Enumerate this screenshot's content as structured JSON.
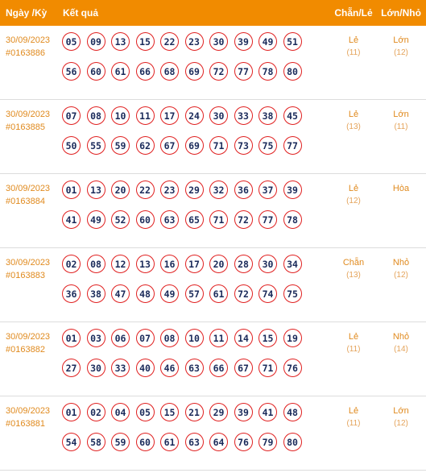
{
  "header": {
    "date_label": "Ngày /Kỳ",
    "result_label": "Kết quả",
    "even_odd_label": "Chẵn/Lẻ",
    "big_small_label": "Lớn/Nhỏ"
  },
  "rows": [
    {
      "date": "30/09/2023",
      "draw": "#0163886",
      "numbers": [
        "05",
        "09",
        "13",
        "15",
        "22",
        "23",
        "30",
        "39",
        "49",
        "51",
        "56",
        "60",
        "61",
        "66",
        "68",
        "69",
        "72",
        "77",
        "78",
        "80"
      ],
      "even_odd": "Lẻ",
      "even_odd_count": "(11)",
      "big_small": "Lớn",
      "big_small_count": "(12)"
    },
    {
      "date": "30/09/2023",
      "draw": "#0163885",
      "numbers": [
        "07",
        "08",
        "10",
        "11",
        "17",
        "24",
        "30",
        "33",
        "38",
        "45",
        "50",
        "55",
        "59",
        "62",
        "67",
        "69",
        "71",
        "73",
        "75",
        "77"
      ],
      "even_odd": "Lẻ",
      "even_odd_count": "(13)",
      "big_small": "Lớn",
      "big_small_count": "(11)"
    },
    {
      "date": "30/09/2023",
      "draw": "#0163884",
      "numbers": [
        "01",
        "13",
        "20",
        "22",
        "23",
        "29",
        "32",
        "36",
        "37",
        "39",
        "41",
        "49",
        "52",
        "60",
        "63",
        "65",
        "71",
        "72",
        "77",
        "78"
      ],
      "even_odd": "Lẻ",
      "even_odd_count": "(12)",
      "big_small": "Hòa",
      "big_small_count": ""
    },
    {
      "date": "30/09/2023",
      "draw": "#0163883",
      "numbers": [
        "02",
        "08",
        "12",
        "13",
        "16",
        "17",
        "20",
        "28",
        "30",
        "34",
        "36",
        "38",
        "47",
        "48",
        "49",
        "57",
        "61",
        "72",
        "74",
        "75"
      ],
      "even_odd": "Chẵn",
      "even_odd_count": "(13)",
      "big_small": "Nhỏ",
      "big_small_count": "(12)"
    },
    {
      "date": "30/09/2023",
      "draw": "#0163882",
      "numbers": [
        "01",
        "03",
        "06",
        "07",
        "08",
        "10",
        "11",
        "14",
        "15",
        "19",
        "27",
        "30",
        "33",
        "40",
        "46",
        "63",
        "66",
        "67",
        "71",
        "76"
      ],
      "even_odd": "Lẻ",
      "even_odd_count": "(11)",
      "big_small": "Nhỏ",
      "big_small_count": "(14)"
    },
    {
      "date": "30/09/2023",
      "draw": "#0163881",
      "numbers": [
        "01",
        "02",
        "04",
        "05",
        "15",
        "21",
        "29",
        "39",
        "41",
        "48",
        "54",
        "58",
        "59",
        "60",
        "61",
        "63",
        "64",
        "76",
        "79",
        "80"
      ],
      "even_odd": "Lẻ",
      "even_odd_count": "(11)",
      "big_small": "Lớn",
      "big_small_count": "(12)"
    }
  ],
  "colors": {
    "header_bg": "#f18b00",
    "accent_text": "#e08a1e",
    "ball_border": "#e02020",
    "ball_text": "#1a2a5a"
  }
}
